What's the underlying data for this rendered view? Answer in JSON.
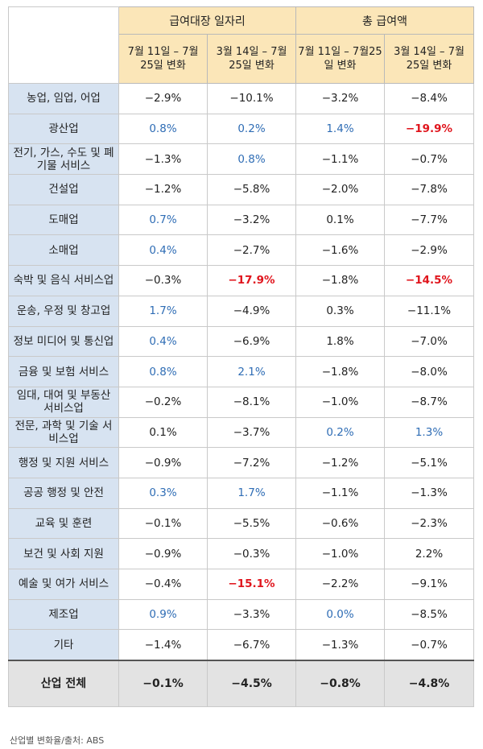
{
  "header": {
    "group1": "급여대장 일자리",
    "group2": "총 급여액",
    "sub": [
      "7월 11일 – 7월 25일 변화",
      "3월 14일 – 7월 25일 변화",
      "7월 11일 – 7월25일 변화",
      "3월 14일 – 7월 25일 변화"
    ]
  },
  "rows": [
    {
      "label": "농업, 임업, 어업",
      "v": [
        "−2.9%",
        "−10.1%",
        "−3.2%",
        "−8.4%"
      ],
      "s": [
        "neu",
        "neu",
        "neu",
        "neu"
      ]
    },
    {
      "label": "광산업",
      "v": [
        "0.8%",
        "0.2%",
        "1.4%",
        "−19.9%"
      ],
      "s": [
        "pos",
        "pos",
        "pos",
        "neg"
      ]
    },
    {
      "label": "전기, 가스, 수도 및 폐기물 서비스",
      "v": [
        "−1.3%",
        "0.8%",
        "−1.1%",
        "−0.7%"
      ],
      "s": [
        "neu",
        "pos",
        "neu",
        "neu"
      ]
    },
    {
      "label": "건설업",
      "v": [
        "−1.2%",
        "−5.8%",
        "−2.0%",
        "−7.8%"
      ],
      "s": [
        "neu",
        "neu",
        "neu",
        "neu"
      ]
    },
    {
      "label": "도매업",
      "v": [
        "0.7%",
        "−3.2%",
        "0.1%",
        "−7.7%"
      ],
      "s": [
        "pos",
        "neu",
        "neu",
        "neu"
      ]
    },
    {
      "label": "소매업",
      "v": [
        "0.4%",
        "−2.7%",
        "−1.6%",
        "−2.9%"
      ],
      "s": [
        "pos",
        "neu",
        "neu",
        "neu"
      ]
    },
    {
      "label": "숙박 및 음식 서비스업",
      "v": [
        "−0.3%",
        "−17.9%",
        "−1.8%",
        "−14.5%"
      ],
      "s": [
        "neu",
        "neg",
        "neu",
        "neg"
      ]
    },
    {
      "label": "운송, 우정 및 창고업",
      "v": [
        "1.7%",
        "−4.9%",
        "0.3%",
        "−11.1%"
      ],
      "s": [
        "pos",
        "neu",
        "neu",
        "neu"
      ]
    },
    {
      "label": "정보 미디어 및 통신업",
      "v": [
        "0.4%",
        "−6.9%",
        "1.8%",
        "−7.0%"
      ],
      "s": [
        "pos",
        "neu",
        "neu",
        "neu"
      ]
    },
    {
      "label": "금융 및 보험 서비스",
      "v": [
        "0.8%",
        "2.1%",
        "−1.8%",
        "−8.0%"
      ],
      "s": [
        "pos",
        "pos",
        "neu",
        "neu"
      ]
    },
    {
      "label": "임대, 대여 및 부동산 서비스업",
      "v": [
        "−0.2%",
        "−8.1%",
        "−1.0%",
        "−8.7%"
      ],
      "s": [
        "neu",
        "neu",
        "neu",
        "neu"
      ]
    },
    {
      "label": "전문, 과학 및 기술 서비스업",
      "v": [
        "0.1%",
        "−3.7%",
        "0.2%",
        "1.3%"
      ],
      "s": [
        "neu",
        "neu",
        "pos",
        "pos"
      ]
    },
    {
      "label": "행정 및 지원 서비스",
      "v": [
        "−0.9%",
        "−7.2%",
        "−1.2%",
        "−5.1%"
      ],
      "s": [
        "neu",
        "neu",
        "neu",
        "neu"
      ]
    },
    {
      "label": "공공 행정 및 안전",
      "v": [
        "0.3%",
        "1.7%",
        "−1.1%",
        "−1.3%"
      ],
      "s": [
        "pos",
        "pos",
        "neu",
        "neu"
      ]
    },
    {
      "label": "교육 및 훈련",
      "v": [
        "−0.1%",
        "−5.5%",
        "−0.6%",
        "−2.3%"
      ],
      "s": [
        "neu",
        "neu",
        "neu",
        "neu"
      ]
    },
    {
      "label": "보건 및 사회 지원",
      "v": [
        "−0.9%",
        "−0.3%",
        "−1.0%",
        "2.2%"
      ],
      "s": [
        "neu",
        "neu",
        "neu",
        "neu"
      ]
    },
    {
      "label": "예술 및 여가 서비스",
      "v": [
        "−0.4%",
        "−15.1%",
        "−2.2%",
        "−9.1%"
      ],
      "s": [
        "neu",
        "neg",
        "neu",
        "neu"
      ]
    },
    {
      "label": "제조업",
      "v": [
        "0.9%",
        "−3.3%",
        "0.0%",
        "−8.5%"
      ],
      "s": [
        "pos",
        "neu",
        "pos",
        "neu"
      ]
    },
    {
      "label": "기타",
      "v": [
        "−1.4%",
        "−6.7%",
        "−1.3%",
        "−0.7%"
      ],
      "s": [
        "neu",
        "neu",
        "neu",
        "neu"
      ]
    }
  ],
  "total": {
    "label": "산업 전체",
    "v": [
      "−0.1%",
      "−4.5%",
      "−0.8%",
      "−4.8%"
    ]
  },
  "caption": "산업별 변화율/출처: ABS",
  "colors": {
    "header_bg": "#fbe6b8",
    "label_bg": "#d7e3f1",
    "positive": "#2f6db5",
    "negative": "#e0151d",
    "total_bg": "#e3e3e3"
  }
}
